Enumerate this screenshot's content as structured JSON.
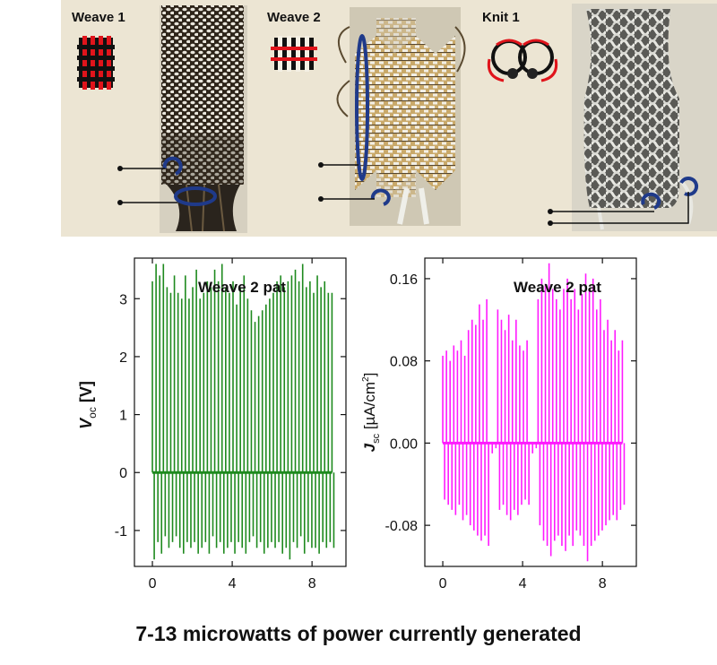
{
  "panels": [
    {
      "label": "Weave 1"
    },
    {
      "label": "Weave 2"
    },
    {
      "label": "Knit 1"
    }
  ],
  "chart_data": [
    {
      "type": "line",
      "title": "Weave 2 pat",
      "ylabel": "V_oc [V]",
      "ylabel_main": "V",
      "ylabel_sub": "oc",
      "ylabel_unit": " [V]",
      "xlabel": "",
      "xlim": [
        -0.9,
        9.7
      ],
      "ylim": [
        -1.62,
        3.7
      ],
      "xticks": [
        0,
        4,
        8
      ],
      "yticks": [
        -1,
        0,
        1,
        2,
        3
      ],
      "ytick_labels": [
        "-1",
        "0",
        "1",
        "2",
        "3"
      ],
      "color": "#1e8a1e",
      "series": [
        {
          "x_start": 0.0,
          "x_end": 9.0,
          "count": 50,
          "peaks": [
            3.3,
            3.6,
            3.4,
            3.6,
            3.2,
            3.1,
            3.4,
            3.1,
            3.0,
            3.4,
            3.0,
            3.2,
            3.5,
            3.0,
            3.1,
            3.3,
            3.2,
            3.5,
            3.3,
            3.6,
            3.2,
            3.1,
            3.3,
            2.9,
            3.2,
            3.4,
            3.0,
            2.8,
            2.6,
            2.7,
            2.8,
            2.9,
            3.0,
            3.1,
            3.3,
            3.4,
            3.2,
            3.3,
            3.4,
            3.5,
            3.3,
            3.6,
            3.2,
            3.3,
            3.1,
            3.4,
            3.2,
            3.3,
            3.1,
            3.1
          ],
          "troughs": [
            -1.5,
            -1.2,
            -1.4,
            -1.1,
            -1.3,
            -1.2,
            -1.1,
            -1.3,
            -1.4,
            -1.2,
            -1.3,
            -1.2,
            -1.4,
            -1.3,
            -1.2,
            -1.4,
            -1.1,
            -1.3,
            -1.2,
            -1.4,
            -1.3,
            -1.2,
            -1.4,
            -1.2,
            -1.3,
            -1.4,
            -1.2,
            -1.1,
            -1.3,
            -1.2,
            -1.4,
            -1.3,
            -1.2,
            -1.3,
            -1.2,
            -1.4,
            -1.3,
            -1.5,
            -1.2,
            -1.3,
            -1.1,
            -1.4,
            -1.2,
            -1.3,
            -1.3,
            -1.4,
            -1.2,
            -1.3,
            -1.2,
            -1.3
          ]
        }
      ]
    },
    {
      "type": "line",
      "title": "Weave 2 pat",
      "ylabel": "J_sc [µA/cm²]",
      "ylabel_main": "J",
      "ylabel_sub": "sc",
      "ylabel_unit": " [µA/cm",
      "ylabel_sup": "2",
      "ylabel_end": "]",
      "xlabel": "",
      "xlim": [
        -0.9,
        9.7
      ],
      "ylim": [
        -0.12,
        0.18
      ],
      "xticks": [
        0,
        4,
        8
      ],
      "yticks": [
        -0.08,
        0.0,
        0.08,
        0.16
      ],
      "ytick_labels": [
        "-0.08",
        "0.00",
        "0.08",
        "0.16"
      ],
      "color": "#ff1aff",
      "series": [
        {
          "x_start": 0.0,
          "x_end": 9.0,
          "count": 50,
          "peaks": [
            0.085,
            0.09,
            0.08,
            0.095,
            0.09,
            0.1,
            0.085,
            0.11,
            0.12,
            0.115,
            0.135,
            0.12,
            0.14,
            0.0,
            0.0,
            0.13,
            0.12,
            0.11,
            0.125,
            0.1,
            0.12,
            0.095,
            0.09,
            0.1,
            0.0,
            0.0,
            0.14,
            0.16,
            0.155,
            0.175,
            0.15,
            0.14,
            0.13,
            0.15,
            0.16,
            0.14,
            0.15,
            0.13,
            0.145,
            0.165,
            0.15,
            0.16,
            0.13,
            0.14,
            0.11,
            0.12,
            0.1,
            0.11,
            0.09,
            0.1
          ],
          "troughs": [
            -0.055,
            -0.06,
            -0.065,
            -0.07,
            -0.06,
            -0.075,
            -0.07,
            -0.08,
            -0.085,
            -0.09,
            -0.095,
            -0.09,
            -0.1,
            -0.01,
            -0.005,
            -0.065,
            -0.06,
            -0.07,
            -0.075,
            -0.065,
            -0.07,
            -0.06,
            -0.055,
            -0.06,
            -0.01,
            -0.005,
            -0.08,
            -0.095,
            -0.1,
            -0.11,
            -0.095,
            -0.09,
            -0.1,
            -0.105,
            -0.09,
            -0.1,
            -0.085,
            -0.09,
            -0.1,
            -0.115,
            -0.1,
            -0.095,
            -0.09,
            -0.085,
            -0.08,
            -0.075,
            -0.07,
            -0.075,
            -0.065,
            -0.06
          ]
        }
      ]
    }
  ],
  "caption": "7-13 microwatts of power currently generated"
}
